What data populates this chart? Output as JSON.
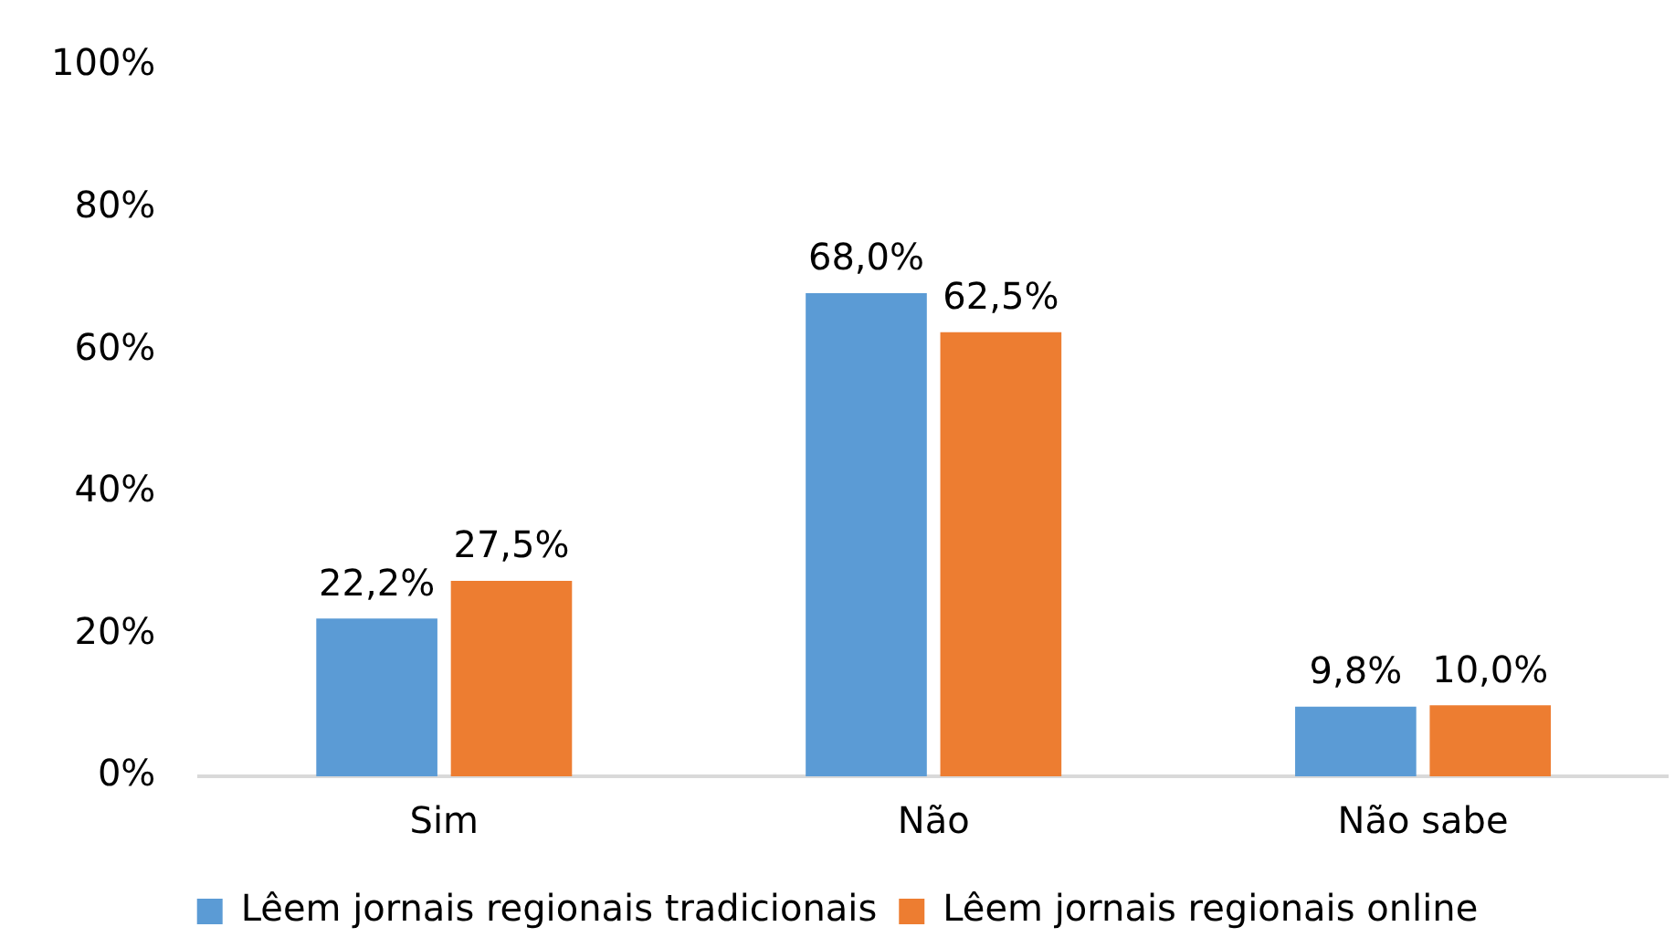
{
  "chart_data": {
    "type": "bar",
    "categories": [
      "Sim",
      "Não",
      "Não sabe"
    ],
    "series": [
      {
        "name": "Lêem jornais regionais tradicionais",
        "color": "#5b9bd5",
        "values": [
          22.2,
          68.0,
          9.8
        ],
        "value_labels": [
          "22,2%",
          "68,0%",
          "9,8%"
        ]
      },
      {
        "name": "Lêem jornais regionais online",
        "color": "#ed7d31",
        "values": [
          27.5,
          62.5,
          10.0
        ],
        "value_labels": [
          "27,5%",
          "62,5%",
          "10,0%"
        ]
      }
    ],
    "ylim": [
      0,
      100
    ],
    "yticks": [
      {
        "value": 0,
        "label": "0%"
      },
      {
        "value": 20,
        "label": "20%"
      },
      {
        "value": 40,
        "label": "40%"
      },
      {
        "value": 60,
        "label": "60%"
      },
      {
        "value": 80,
        "label": "80%"
      },
      {
        "value": 100,
        "label": "100%"
      }
    ],
    "grid": false,
    "legend": "bottom"
  }
}
